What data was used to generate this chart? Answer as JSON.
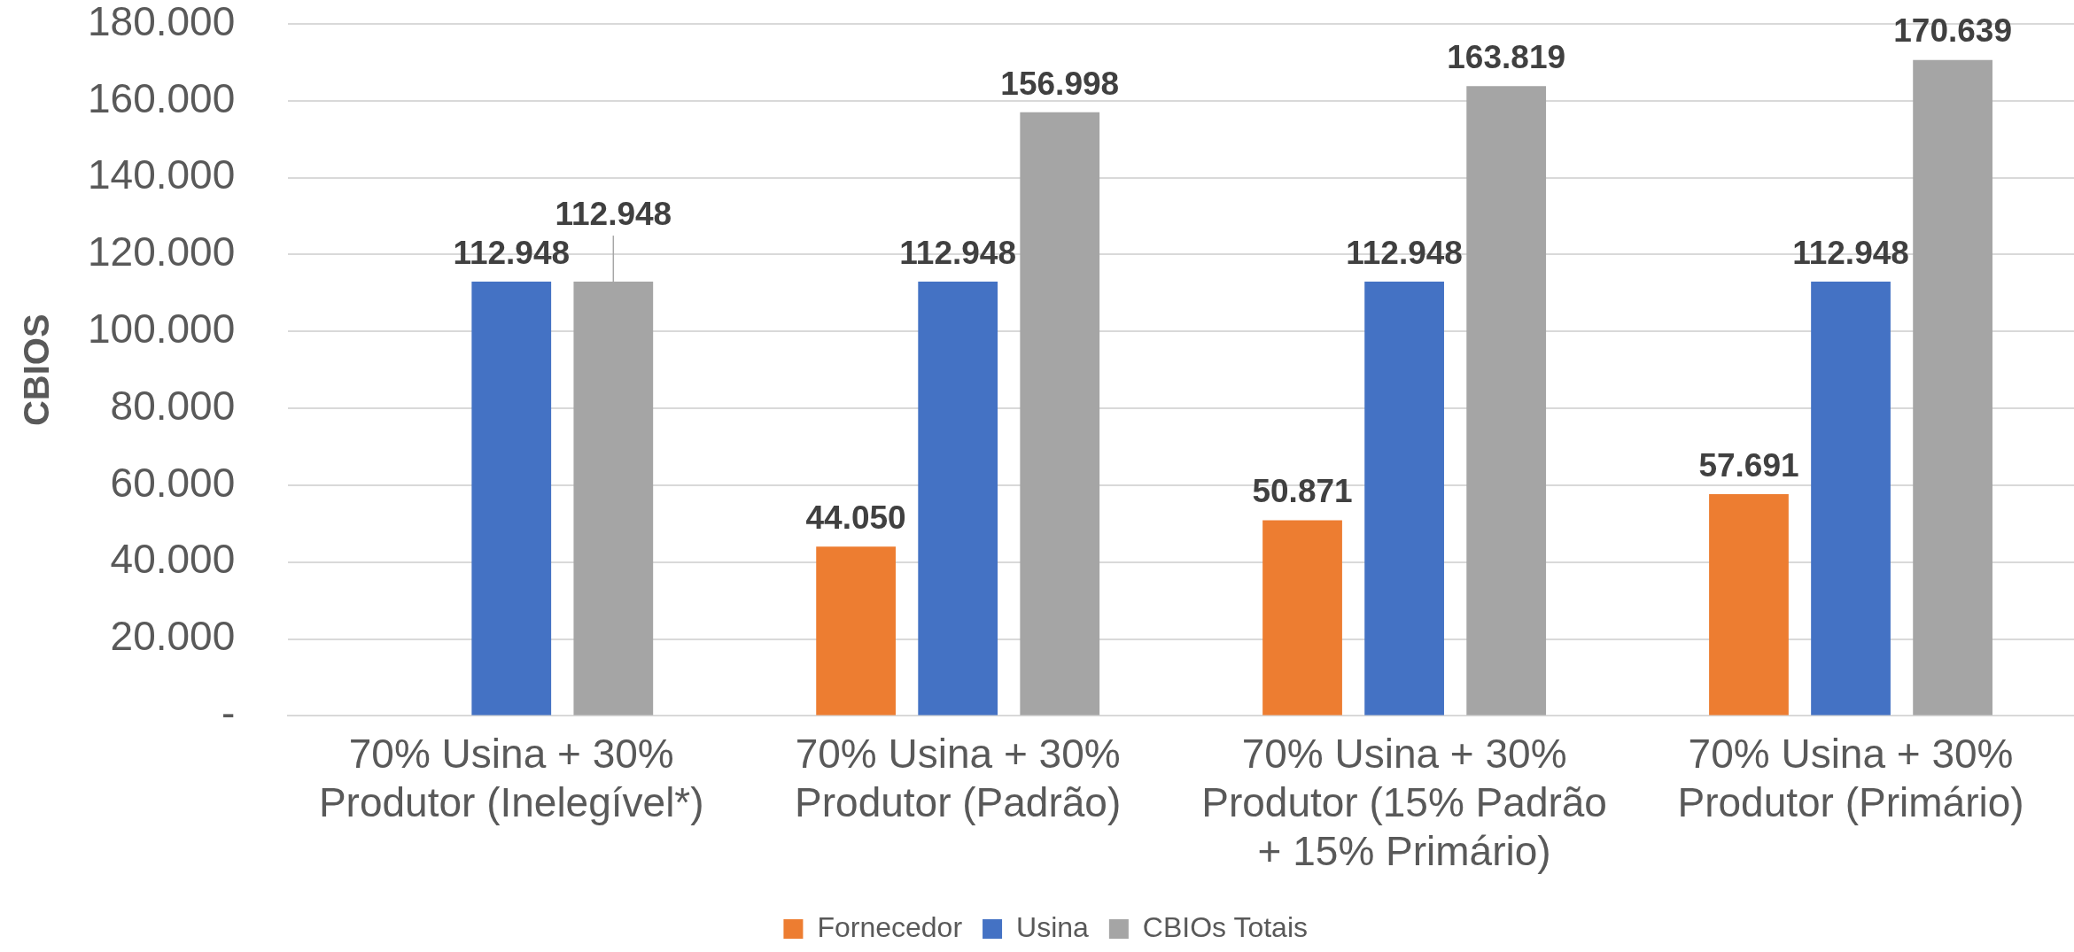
{
  "chart_data": {
    "type": "bar",
    "ylabel": "CBIOS",
    "categories": [
      "70% Usina + 30% Produtor (Inelegível*)",
      "70% Usina + 30% Produtor (Padrão)",
      "70% Usina + 30% Produtor (15% Padrão + 15% Primário)",
      "70% Usina + 30% Produtor (Primário)"
    ],
    "series": [
      {
        "name": "Fornecedor",
        "color": "#ed7d31",
        "values": [
          null,
          44050,
          50871,
          57691
        ],
        "value_labels": [
          null,
          "44.050",
          "50.871",
          "57.691"
        ]
      },
      {
        "name": "Usina",
        "color": "#4472c4",
        "values": [
          112948,
          112948,
          112948,
          112948
        ],
        "value_labels": [
          "112.948",
          "112.948",
          "112.948",
          "112.948"
        ]
      },
      {
        "name": "CBIOs Totais",
        "color": "#a5a5a5",
        "values": [
          112948,
          156998,
          163819,
          170639
        ],
        "value_labels": [
          "112.948",
          "156.998",
          "163.819",
          "170.639"
        ]
      }
    ],
    "ylim": [
      0,
      180000
    ],
    "yticks": [
      {
        "value": 0,
        "label": "-"
      },
      {
        "value": 20000,
        "label": "20.000"
      },
      {
        "value": 40000,
        "label": "40.000"
      },
      {
        "value": 60000,
        "label": "60.000"
      },
      {
        "value": 80000,
        "label": "80.000"
      },
      {
        "value": 100000,
        "label": "100.000"
      },
      {
        "value": 120000,
        "label": "120.000"
      },
      {
        "value": 140000,
        "label": "140.000"
      },
      {
        "value": 160000,
        "label": "160.000"
      },
      {
        "value": 180000,
        "label": "180.000"
      }
    ],
    "grid": "y",
    "legend": "bottom"
  }
}
